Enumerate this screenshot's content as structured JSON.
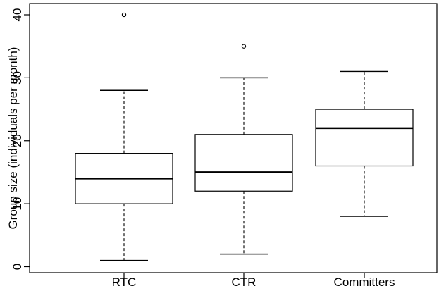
{
  "chart_data": {
    "type": "boxplot",
    "title": "",
    "xlabel": "",
    "ylabel": "Group size (individuals per month)",
    "ylim": [
      0,
      40
    ],
    "yticks": [
      0,
      10,
      20,
      30,
      40
    ],
    "categories": [
      "RTC",
      "CTR",
      "Committers"
    ],
    "boxes": [
      {
        "category": "RTC",
        "min": 1,
        "q1": 10,
        "median": 14,
        "q3": 18,
        "max": 28,
        "outliers": [
          40
        ]
      },
      {
        "category": "CTR",
        "min": 2,
        "q1": 12,
        "median": 15,
        "q3": 21,
        "max": 30,
        "outliers": [
          35
        ]
      },
      {
        "category": "Committers",
        "min": 8,
        "q1": 16,
        "median": 22,
        "q3": 25,
        "max": 31,
        "outliers": []
      }
    ],
    "grid": false,
    "legend": "none"
  }
}
